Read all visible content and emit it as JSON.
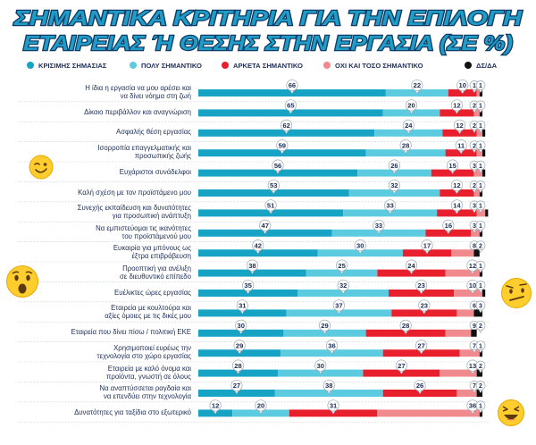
{
  "title": {
    "line1": "ΣΗΜΑΝΤΙΚΑ ΚΡΙΤΗΡΙΑ ΓΙΑ ΤΗΝ ΕΠΙΛΟΓΗ",
    "line2": "ΕΤΑΙΡΕΙΑΣ Ή ΘΕΣΗΣ ΣΤΗΝ ΕΡΓΑΣΙΑ (ΣΕ %)",
    "color": "#1e9ec6",
    "stroke": "#123a66"
  },
  "legend": [
    {
      "label": "ΚΡΙΣΙΜΗΣ ΣΗΜΑΣΙΑΣ",
      "color": "#17a3c4"
    },
    {
      "label": "ΠΟΛΥ ΣΗΜΑΝΤΙΚΟ",
      "color": "#5ccbe0"
    },
    {
      "label": "ΑΡΚΕΤΑ ΣΗΜΑΝΤΙΚΟ",
      "color": "#e8202e"
    },
    {
      "label": "ΟΧΙ ΚΑΙ ΤΟΣΟ ΣΗΜΑΝΤΙΚΟ",
      "color": "#f08a8f"
    },
    {
      "label": "ΔΣ/ΔΑ",
      "color": "#111111"
    }
  ],
  "chart_data": {
    "type": "bar",
    "orientation": "horizontal",
    "stacked": true,
    "xlim": [
      0,
      100
    ],
    "series_colors": [
      "#17a3c4",
      "#5ccbe0",
      "#e8202e",
      "#f08a8f",
      "#111111"
    ],
    "categories": [
      "Η ίδια η εργασία να μου αρέσει και\nνα δίνει νόημα στη ζωή",
      "Δίκαιο περιβάλλον και αναγνώριση",
      "Ασφαλής θέση εργασίας",
      "Ισορροπία επαγγελματικής και\nπροσωπικής ζωής",
      "Ευχάριστοι συνάδελφοι",
      "Καλή σχέση με τον προϊστάμενο μου",
      "Συνεχής εκπαίδευση και δυνατότητες\nγια προσωπική ανάπτυξη",
      "Να εμπιστεύομαι τις ικανότητες\nτου προϊστάμενού μου",
      "Ευκαιρία για μπόνους ως\nέξτρα επιβράβευση",
      "Προοπτική για ανέλιξη\nσε διευθυντικό επίπεδο",
      "Ευέλικτες ώρες εργασίας",
      "Εταιρεία με κουλτούρα και\nαξίες όμοιες με τις δικές μου",
      "Εταιρεία που δίνει πίσω / πολιτική ΕΚΕ",
      "Χρησιμοποιεί ευρέως την\nτεχνολογία στο χώρο εργασίας",
      "Εταιρεία με καλό όνομα και\nπροϊόντα, γνωστή σε όλους",
      "Να αναπτύσσεται ραγδαία και\nνα επενδύει στην τεχνολογία",
      "Δυνατότητες για ταξίδια στο εξωτερικό"
    ],
    "series": [
      {
        "name": "ΚΡΙΣΙΜΗΣ ΣΗΜΑΣΙΑΣ",
        "values": [
          66,
          65,
          62,
          59,
          56,
          53,
          51,
          47,
          42,
          38,
          35,
          31,
          30,
          29,
          28,
          27,
          12
        ]
      },
      {
        "name": "ΠΟΛΥ ΣΗΜΑΝΤΙΚΟ",
        "values": [
          22,
          20,
          24,
          28,
          26,
          32,
          33,
          33,
          30,
          25,
          32,
          37,
          29,
          36,
          30,
          38,
          20
        ]
      },
      {
        "name": "ΑΡΚΕΤΑ ΣΗΜΑΝΤΙΚΟ",
        "values": [
          10,
          12,
          12,
          11,
          15,
          12,
          14,
          16,
          17,
          24,
          23,
          23,
          28,
          27,
          27,
          26,
          31
        ]
      },
      {
        "name": "ΟΧΙ ΚΑΙ ΤΟΣΟ ΣΗΜΑΝΤΙΚΟ",
        "values": [
          1,
          2,
          2,
          2,
          3,
          2,
          3,
          3,
          8,
          12,
          10,
          6,
          9,
          7,
          13,
          7,
          36
        ]
      },
      {
        "name": "ΔΣ/ΔΑ",
        "values": [
          1,
          1,
          1,
          1,
          1,
          1,
          1,
          1,
          2,
          1,
          1,
          3,
          2,
          1,
          2,
          2,
          1
        ]
      }
    ]
  }
}
